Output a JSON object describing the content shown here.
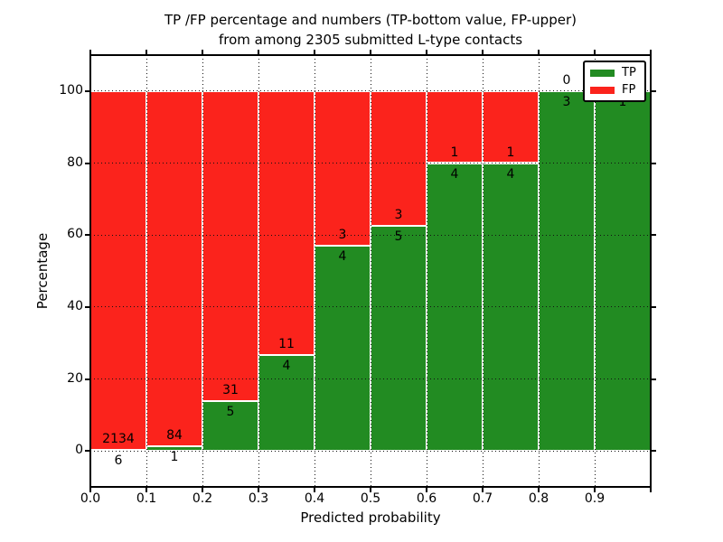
{
  "chart_data": {
    "type": "bar",
    "stacked": true,
    "title_lines": [
      "TP /FP percentage and numbers (TP-bottom value, FP-upper)",
      "from among 2305 submitted L-type contacts"
    ],
    "xlabel": "Predicted probability",
    "ylabel": "Percentage",
    "xlim": [
      0.0,
      1.0
    ],
    "ylim": [
      -10,
      110
    ],
    "x_tick_labels": [
      "0.0",
      "0.1",
      "0.2",
      "0.3",
      "0.4",
      "0.5",
      "0.6",
      "0.7",
      "0.8",
      "0.9"
    ],
    "y_tick_values": [
      0,
      20,
      40,
      60,
      80,
      100
    ],
    "grid": true,
    "total_contacts": 2305,
    "series": [
      {
        "name": "TP",
        "position": "bottom",
        "color": "#228b22"
      },
      {
        "name": "FP",
        "position": "top",
        "color": "#fb231c"
      }
    ],
    "bins": [
      {
        "x_start": 0.0,
        "x_end": 0.1,
        "tp": 6,
        "fp": 2134,
        "tp_pct": 0.28
      },
      {
        "x_start": 0.1,
        "x_end": 0.2,
        "tp": 1,
        "fp": 84,
        "tp_pct": 1.18
      },
      {
        "x_start": 0.2,
        "x_end": 0.3,
        "tp": 5,
        "fp": 31,
        "tp_pct": 13.89
      },
      {
        "x_start": 0.3,
        "x_end": 0.4,
        "tp": 4,
        "fp": 11,
        "tp_pct": 26.67
      },
      {
        "x_start": 0.4,
        "x_end": 0.5,
        "tp": 4,
        "fp": 3,
        "tp_pct": 57.14
      },
      {
        "x_start": 0.5,
        "x_end": 0.6,
        "tp": 5,
        "fp": 3,
        "tp_pct": 62.5
      },
      {
        "x_start": 0.6,
        "x_end": 0.7,
        "tp": 4,
        "fp": 1,
        "tp_pct": 80.0
      },
      {
        "x_start": 0.7,
        "x_end": 0.8,
        "tp": 4,
        "fp": 1,
        "tp_pct": 80.0
      },
      {
        "x_start": 0.8,
        "x_end": 0.9,
        "tp": 3,
        "fp": 0,
        "tp_pct": 100.0
      },
      {
        "x_start": 0.9,
        "x_end": 1.0,
        "tp": 1,
        "fp": 0,
        "tp_pct": 100.0
      }
    ],
    "legend": {
      "position": "upper right",
      "entries": [
        {
          "label": "TP",
          "color": "#228b22"
        },
        {
          "label": "FP",
          "color": "#fb231c"
        }
      ]
    }
  }
}
